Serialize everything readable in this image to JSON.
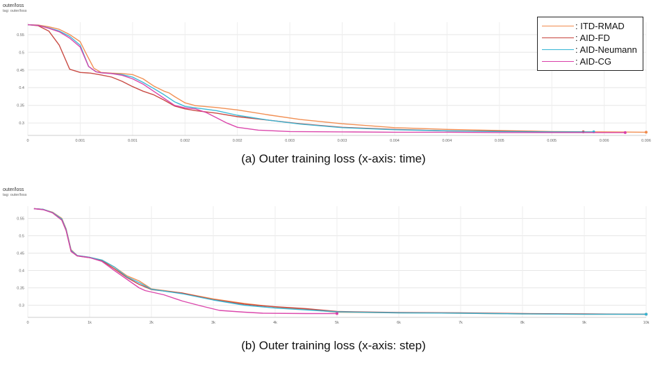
{
  "charts": [
    {
      "title": "outer/loss",
      "tag": "tag: outer/loss",
      "caption": "(a) Outer training loss (x-axis: time)"
    },
    {
      "title": "outer/loss",
      "tag": "tag: outer/loss",
      "caption": "(b) Outer training loss (x-axis: step)"
    }
  ],
  "legend": [
    {
      "label": ": ITD-RMAD",
      "color": "#f0894a"
    },
    {
      "label": ": AID-FD",
      "color": "#c6413a"
    },
    {
      "label": ": AID-Neumann",
      "color": "#33b5d4"
    },
    {
      "label": ": AID-CG",
      "color": "#d93da8"
    }
  ],
  "chart_data": [
    {
      "type": "line",
      "title": "outer/loss",
      "xlim": [
        0,
        0.0059
      ],
      "ylim": [
        0.265,
        0.585
      ],
      "x_ticks": [
        0,
        0.0005,
        0.001,
        0.0015,
        0.002,
        0.0025,
        0.003,
        0.0035,
        0.004,
        0.0045,
        0.005,
        0.0055,
        0.0059
      ],
      "x_tick_labels": [
        "0",
        "0.001",
        "0.001",
        "0.002",
        "0.002",
        "0.003",
        "0.003",
        "0.004",
        "0.004",
        "0.005",
        "0.005",
        "0.006",
        "0.006"
      ],
      "y_ticks": [
        0.3,
        0.35,
        0.4,
        0.45,
        0.5,
        0.55
      ],
      "y_tick_labels": [
        "0.3",
        "0.35",
        "0.4",
        "0.45",
        "0.5",
        "0.55"
      ],
      "grid": true,
      "legend_position": "top-right",
      "series": [
        {
          "name": "ITD-RMAD",
          "color": "#f0894a",
          "x": [
            0,
            0.0001,
            0.0002,
            0.0003,
            0.0004,
            0.0005,
            0.00055,
            0.00063,
            0.0007,
            0.0008,
            0.0009,
            0.001,
            0.0011,
            0.0012,
            0.0013,
            0.00135,
            0.0014,
            0.0015,
            0.0016,
            0.0018,
            0.002,
            0.0023,
            0.0026,
            0.003,
            0.0035,
            0.004,
            0.0045,
            0.005,
            0.0055,
            0.0059
          ],
          "y": [
            0.578,
            0.577,
            0.572,
            0.565,
            0.55,
            0.53,
            0.5,
            0.455,
            0.443,
            0.441,
            0.44,
            0.437,
            0.425,
            0.405,
            0.39,
            0.385,
            0.375,
            0.357,
            0.349,
            0.344,
            0.337,
            0.323,
            0.31,
            0.298,
            0.287,
            0.282,
            0.279,
            0.276,
            0.275,
            0.274
          ]
        },
        {
          "name": "AID-FD",
          "color": "#c6413a",
          "x": [
            0,
            0.0001,
            0.0002,
            0.0003,
            0.0004,
            0.0005,
            0.0006,
            0.0007,
            0.0008,
            0.0009,
            0.001,
            0.0011,
            0.0012,
            0.0013,
            0.0014,
            0.0015,
            0.0016,
            0.0018,
            0.002,
            0.0023,
            0.0026,
            0.003,
            0.0035,
            0.004,
            0.0045,
            0.005,
            0.0053
          ],
          "y": [
            0.578,
            0.575,
            0.56,
            0.52,
            0.452,
            0.443,
            0.441,
            0.436,
            0.43,
            0.418,
            0.403,
            0.39,
            0.38,
            0.365,
            0.348,
            0.34,
            0.335,
            0.328,
            0.318,
            0.308,
            0.298,
            0.288,
            0.282,
            0.278,
            0.277,
            0.275,
            0.275
          ]
        },
        {
          "name": "AID-Neumann",
          "color": "#33b5d4",
          "x": [
            0,
            0.0001,
            0.0002,
            0.0003,
            0.0004,
            0.0005,
            0.00058,
            0.00065,
            0.0007,
            0.0008,
            0.0009,
            0.001,
            0.0011,
            0.0012,
            0.0013,
            0.0014,
            0.0015,
            0.0016,
            0.0018,
            0.002,
            0.0023,
            0.0026,
            0.003,
            0.0035,
            0.004,
            0.0045,
            0.005,
            0.0054
          ],
          "y": [
            0.578,
            0.576,
            0.569,
            0.56,
            0.545,
            0.52,
            0.46,
            0.445,
            0.442,
            0.44,
            0.437,
            0.43,
            0.415,
            0.398,
            0.38,
            0.36,
            0.347,
            0.343,
            0.335,
            0.322,
            0.308,
            0.297,
            0.287,
            0.281,
            0.278,
            0.276,
            0.275,
            0.275
          ]
        },
        {
          "name": "AID-CG",
          "color": "#d93da8",
          "x": [
            0,
            0.0001,
            0.0002,
            0.0003,
            0.0004,
            0.0005,
            0.00058,
            0.00065,
            0.0007,
            0.0008,
            0.0009,
            0.001,
            0.0011,
            0.0012,
            0.0013,
            0.0014,
            0.0015,
            0.0016,
            0.0017,
            0.0018,
            0.0019,
            0.002,
            0.0022,
            0.0025,
            0.003,
            0.0035,
            0.004,
            0.0045,
            0.005,
            0.0057
          ],
          "y": [
            0.578,
            0.576,
            0.568,
            0.558,
            0.54,
            0.515,
            0.46,
            0.445,
            0.442,
            0.44,
            0.435,
            0.425,
            0.41,
            0.39,
            0.37,
            0.35,
            0.343,
            0.34,
            0.33,
            0.315,
            0.3,
            0.288,
            0.28,
            0.276,
            0.275,
            0.274,
            0.274,
            0.273,
            0.273,
            0.273
          ]
        }
      ]
    },
    {
      "type": "line",
      "title": "outer/loss",
      "xlim": [
        0,
        10000
      ],
      "ylim": [
        0.265,
        0.585
      ],
      "x_ticks": [
        0,
        1000,
        2000,
        3000,
        4000,
        5000,
        6000,
        7000,
        8000,
        9000,
        10000
      ],
      "x_tick_labels": [
        "0",
        "1k",
        "2k",
        "3k",
        "4k",
        "5k",
        "6k",
        "7k",
        "8k",
        "9k",
        "10k"
      ],
      "y_ticks": [
        0.3,
        0.35,
        0.4,
        0.45,
        0.5,
        0.55
      ],
      "y_tick_labels": [
        "0.3",
        "0.35",
        "0.4",
        "0.45",
        "0.5",
        "0.55"
      ],
      "grid": true,
      "series": [
        {
          "name": "ITD-RMAD",
          "color": "#f0894a",
          "x": [
            100,
            250,
            400,
            550,
            620,
            700,
            800,
            1000,
            1200,
            1400,
            1600,
            1800,
            2000,
            2500,
            3000,
            3500,
            4000,
            4500,
            5000,
            6000,
            7000,
            8000,
            9000,
            10000
          ],
          "y": [
            0.578,
            0.576,
            0.568,
            0.55,
            0.52,
            0.46,
            0.443,
            0.438,
            0.43,
            0.41,
            0.385,
            0.37,
            0.347,
            0.335,
            0.318,
            0.305,
            0.295,
            0.288,
            0.28,
            0.278,
            0.277,
            0.275,
            0.274,
            0.274
          ]
        },
        {
          "name": "AID-FD",
          "color": "#c6413a",
          "x": [
            100,
            250,
            400,
            550,
            620,
            700,
            800,
            1000,
            1200,
            1400,
            1600,
            1800,
            2000,
            2500,
            3000,
            3500,
            3800,
            4500,
            5000,
            6000,
            7000,
            8000,
            9000,
            10000
          ],
          "y": [
            0.578,
            0.576,
            0.566,
            0.545,
            0.515,
            0.455,
            0.442,
            0.437,
            0.428,
            0.405,
            0.38,
            0.36,
            0.345,
            0.335,
            0.316,
            0.303,
            0.298,
            0.29,
            0.282,
            0.279,
            0.278,
            0.276,
            0.275,
            0.274
          ]
        },
        {
          "name": "AID-Neumann",
          "color": "#33b5d4",
          "x": [
            100,
            250,
            400,
            550,
            620,
            700,
            800,
            1000,
            1200,
            1400,
            1600,
            1800,
            2000,
            2500,
            3000,
            3500,
            4000,
            5000,
            6000,
            7000,
            8000,
            9000,
            10000
          ],
          "y": [
            0.578,
            0.576,
            0.567,
            0.548,
            0.518,
            0.458,
            0.443,
            0.438,
            0.43,
            0.41,
            0.382,
            0.365,
            0.346,
            0.333,
            0.315,
            0.3,
            0.292,
            0.281,
            0.278,
            0.277,
            0.275,
            0.274,
            0.274
          ]
        },
        {
          "name": "AID-CG",
          "color": "#d93da8",
          "x": [
            100,
            250,
            400,
            550,
            620,
            700,
            800,
            1000,
            1200,
            1400,
            1600,
            1800,
            1900,
            2000,
            2200,
            2500,
            2800,
            3100,
            3500,
            3800,
            4500,
            5000
          ],
          "y": [
            0.578,
            0.575,
            0.566,
            0.545,
            0.515,
            0.455,
            0.442,
            0.437,
            0.426,
            0.4,
            0.375,
            0.35,
            0.342,
            0.338,
            0.33,
            0.312,
            0.298,
            0.285,
            0.28,
            0.277,
            0.276,
            0.276
          ]
        }
      ]
    }
  ]
}
